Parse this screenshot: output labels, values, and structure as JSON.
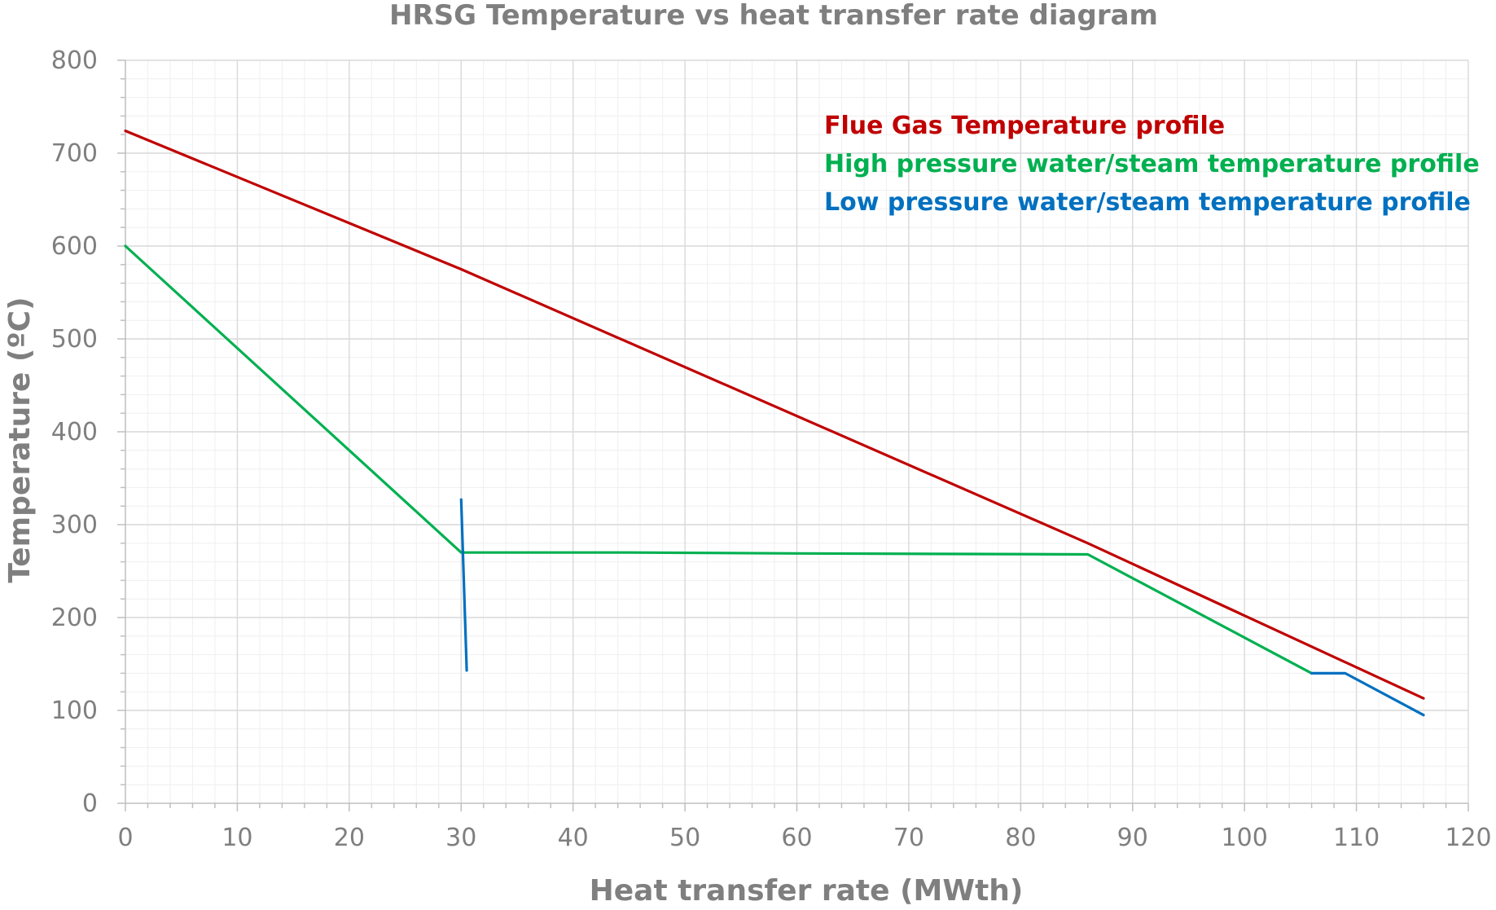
{
  "chart_data": {
    "type": "line",
    "title": "HRSG Temperature vs heat transfer rate diagram",
    "xlabel": "Heat transfer rate (MWth)",
    "ylabel": "Temperature (ºC)",
    "xlim": [
      0,
      120
    ],
    "ylim": [
      0,
      800
    ],
    "x_ticks": [
      0,
      10,
      20,
      30,
      40,
      50,
      60,
      70,
      80,
      90,
      100,
      110,
      120
    ],
    "y_ticks": [
      0,
      100,
      200,
      300,
      400,
      500,
      600,
      700,
      800
    ],
    "grid": true,
    "legend_position": "top-right",
    "series": [
      {
        "name": "Flue Gas Temperature profile",
        "color": "#c00000",
        "points": [
          [
            0,
            724
          ],
          [
            30,
            575
          ],
          [
            86,
            280
          ],
          [
            116,
            113
          ]
        ]
      },
      {
        "name": "High pressure water/steam temperature profile",
        "color": "#00b050",
        "points": [
          [
            0,
            600
          ],
          [
            30,
            270
          ],
          [
            45,
            270
          ],
          [
            60,
            269
          ],
          [
            86,
            268
          ],
          [
            106,
            140
          ]
        ]
      },
      {
        "name": "Low pressure water/steam temperature profile",
        "color": "#0070c0",
        "segments": [
          [
            [
              30,
              327
            ],
            [
              30.5,
              143
            ]
          ],
          [
            [
              106,
              140
            ],
            [
              109,
              140
            ],
            [
              116,
              95
            ]
          ]
        ]
      }
    ]
  }
}
